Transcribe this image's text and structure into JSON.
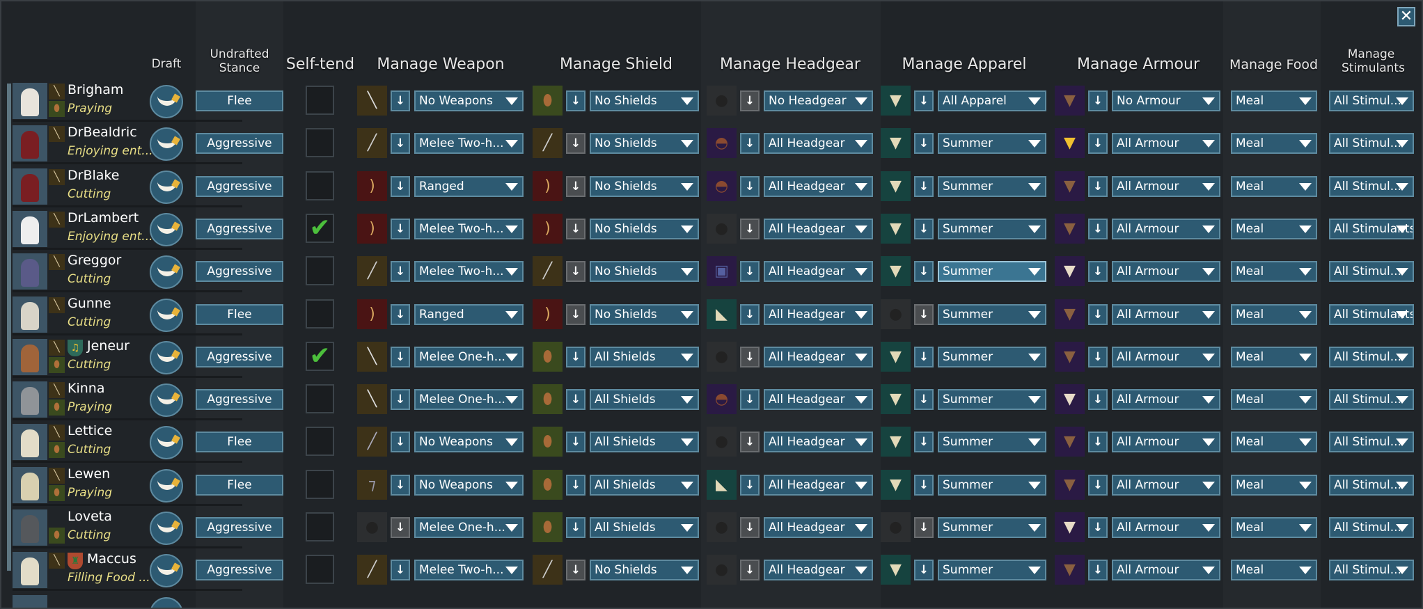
{
  "headers": {
    "draft": "Draft",
    "stance": "Undrafted Stance",
    "selftend": "Self-tend",
    "weapon": "Manage Weapon",
    "shield": "Manage Shield",
    "headgear": "Manage Headgear",
    "apparel": "Manage Apparel",
    "armour": "Manage Armour",
    "food": "Manage Food",
    "stimulants": "Manage Stimulants"
  },
  "close_icon": "close-x-icon",
  "colors": {
    "button": "#2d5a72",
    "activity": "#e9df86",
    "check": "#4cbf3c"
  },
  "rows": [
    {
      "name": "Brigham",
      "activity": "Praying",
      "stance": "Flee",
      "selftend": false,
      "weapon_icon": "sword",
      "weapon": "No Weapons",
      "shield_icon": "shield",
      "shield": "No Shields",
      "headgear_icon": "none",
      "headgear": "No Headgear",
      "apparel_icon": "shirt",
      "apparel": "All Apparel",
      "armour_icon": "vest",
      "armour": "No Armour",
      "food": "Meal",
      "stimulants": "All Stimul..."
    },
    {
      "name": "DrBealdric",
      "activity": "Enjoying ent...",
      "stance": "Aggressive",
      "selftend": false,
      "weapon_icon": "spear",
      "weapon": "Melee Two-h...",
      "shield_icon": "spear",
      "shield": "No Shields",
      "headgear_icon": "helmet",
      "headgear": "All Headgear",
      "apparel_icon": "shirt",
      "apparel": "Summer",
      "armour_icon": "yellow-vest",
      "armour": "All Armour",
      "food": "Meal",
      "stimulants": "All Stimul..."
    },
    {
      "name": "DrBlake",
      "activity": "Cutting",
      "stance": "Aggressive",
      "selftend": false,
      "weapon_icon": "bow",
      "weapon": "Ranged",
      "shield_icon": "bow",
      "shield": "No Shields",
      "headgear_icon": "helmet",
      "headgear": "All Headgear",
      "apparel_icon": "shirt",
      "apparel": "Summer",
      "armour_icon": "vest",
      "armour": "All Armour",
      "food": "Meal",
      "stimulants": "All Stimul..."
    },
    {
      "name": "DrLambert",
      "activity": "Enjoying ent...",
      "stance": "Aggressive",
      "selftend": true,
      "weapon_icon": "bow",
      "weapon": "Melee Two-h...",
      "shield_icon": "bow",
      "shield": "No Shields",
      "headgear_icon": "none",
      "headgear": "All Headgear",
      "apparel_icon": "shirt",
      "apparel": "Summer",
      "armour_icon": "vest",
      "armour": "All Armour",
      "food": "Meal",
      "stimulants": "All Stimulants"
    },
    {
      "name": "Greggor",
      "activity": "Cutting",
      "stance": "Aggressive",
      "selftend": false,
      "weapon_icon": "spear",
      "weapon": "Melee Two-h...",
      "shield_icon": "spear",
      "shield": "No Shields",
      "headgear_icon": "visor",
      "headgear": "All Headgear",
      "apparel_icon": "shirt",
      "apparel": "Summer",
      "apparel_highlight": true,
      "armour_icon": "white-vest",
      "armour": "All Armour",
      "food": "Meal",
      "stimulants": "All Stimul..."
    },
    {
      "name": "Gunne",
      "activity": "Cutting",
      "stance": "Flee",
      "selftend": false,
      "weapon_icon": "bow",
      "weapon": "Ranged",
      "shield_icon": "bow",
      "shield": "No Shields",
      "headgear_icon": "cap",
      "headgear": "All Headgear",
      "apparel_icon": "none",
      "apparel": "Summer",
      "armour_icon": "vest",
      "armour": "All Armour",
      "food": "Meal",
      "stimulants": "All Stimulants"
    },
    {
      "name": "Jeneur",
      "badge": "lyre",
      "activity": "Cutting",
      "stance": "Aggressive",
      "selftend": true,
      "weapon_icon": "sword",
      "weapon": "Melee One-h...",
      "shield_icon": "shield",
      "shield": "All Shields",
      "headgear_icon": "none",
      "headgear": "All Headgear",
      "apparel_icon": "shirt",
      "apparel": "Summer",
      "armour_icon": "vest",
      "armour": "All Armour",
      "food": "Meal",
      "stimulants": "All Stimul..."
    },
    {
      "name": "Kinna",
      "activity": "Praying",
      "stance": "Aggressive",
      "selftend": false,
      "weapon_icon": "sword",
      "weapon": "Melee One-h...",
      "shield_icon": "shield",
      "shield": "All Shields",
      "headgear_icon": "helmet",
      "headgear": "All Headgear",
      "apparel_icon": "shirt",
      "apparel": "Summer",
      "armour_icon": "white-vest",
      "armour": "All Armour",
      "food": "Meal",
      "stimulants": "All Stimul..."
    },
    {
      "name": "Lettice",
      "activity": "Cutting",
      "stance": "Flee",
      "selftend": false,
      "weapon_icon": "mace",
      "weapon": "No Weapons",
      "shield_icon": "shield",
      "shield": "All Shields",
      "headgear_icon": "none",
      "headgear": "All Headgear",
      "apparel_icon": "shirt",
      "apparel": "Summer",
      "armour_icon": "vest",
      "armour": "All Armour",
      "food": "Meal",
      "stimulants": "All Stimul..."
    },
    {
      "name": "Lewen",
      "activity": "Praying",
      "stance": "Flee",
      "selftend": false,
      "weapon_icon": "axe",
      "weapon": "No Weapons",
      "shield_icon": "shield",
      "shield": "All Shields",
      "headgear_icon": "cap",
      "headgear": "All Headgear",
      "apparel_icon": "shirt",
      "apparel": "Summer",
      "armour_icon": "vest",
      "armour": "All Armour",
      "food": "Meal",
      "stimulants": "All Stimul..."
    },
    {
      "name": "Loveta",
      "activity": "Cutting",
      "stance": "Aggressive",
      "selftend": false,
      "weapon_icon": "none",
      "weapon": "Melee One-h...",
      "shield_icon": "shield",
      "shield": "All Shields",
      "headgear_icon": "none",
      "headgear": "All Headgear",
      "apparel_icon": "none",
      "apparel": "Summer",
      "armour_icon": "white-vest",
      "armour": "All Armour",
      "food": "Meal",
      "stimulants": "All Stimul..."
    },
    {
      "name": "Maccus",
      "badge": "tower",
      "activity": "Filling Food ...",
      "stance": "Aggressive",
      "selftend": false,
      "weapon_icon": "spear",
      "weapon": "Melee Two-h...",
      "shield_icon": "spear",
      "shield": "No Shields",
      "headgear_icon": "none",
      "headgear": "All Headgear",
      "apparel_icon": "shirt",
      "apparel": "Summer",
      "armour_icon": "vest",
      "armour": "All Armour",
      "food": "Meal",
      "stimulants": "All Stimul..."
    }
  ]
}
